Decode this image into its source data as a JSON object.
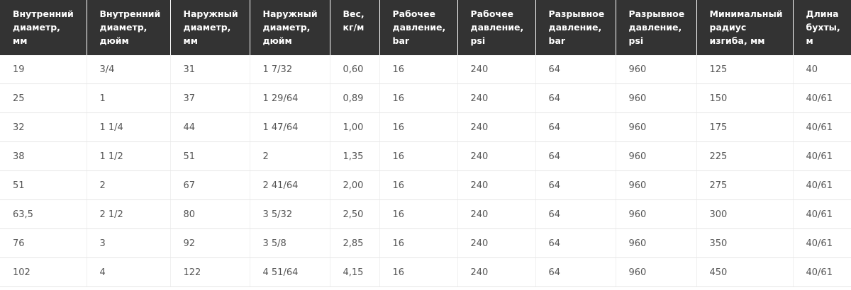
{
  "table": {
    "header": [
      "Внутренний\nдиаметр,\nмм",
      "Внутренний\nдиаметр,\nдюйм",
      "Наружный\nдиаметр,\nмм",
      "Наружный\nдиаметр,\nдюйм",
      "Вес,\nкг/м",
      "Рабочее\nдавление,\nbar",
      "Рабочее\nдавление,\npsi",
      "Разрывное\nдавление,\nbar",
      "Разрывное\nдавление,\npsi",
      "Минимальный\nрадиус\nизгиба, мм",
      "Длина\nбухты,\nм"
    ],
    "rows": [
      [
        "19",
        "3/4",
        "31",
        "1 7/32",
        "0,60",
        "16",
        "240",
        "64",
        "960",
        "125",
        "40"
      ],
      [
        "25",
        "1",
        "37",
        "1 29/64",
        "0,89",
        "16",
        "240",
        "64",
        "960",
        "150",
        "40/61"
      ],
      [
        "32",
        "1 1/4",
        "44",
        "1 47/64",
        "1,00",
        "16",
        "240",
        "64",
        "960",
        "175",
        "40/61"
      ],
      [
        "38",
        "1 1/2",
        "51",
        "2",
        "1,35",
        "16",
        "240",
        "64",
        "960",
        "225",
        "40/61"
      ],
      [
        "51",
        "2",
        "67",
        "2 41/64",
        "2,00",
        "16",
        "240",
        "64",
        "960",
        "275",
        "40/61"
      ],
      [
        "63,5",
        "2 1/2",
        "80",
        "3 5/32",
        "2,50",
        "16",
        "240",
        "64",
        "960",
        "300",
        "40/61"
      ],
      [
        "76",
        "3",
        "92",
        "3 5/8",
        "2,85",
        "16",
        "240",
        "64",
        "960",
        "350",
        "40/61"
      ],
      [
        "102",
        "4",
        "122",
        "4 51/64",
        "4,15",
        "16",
        "240",
        "64",
        "960",
        "450",
        "40/61"
      ]
    ]
  }
}
